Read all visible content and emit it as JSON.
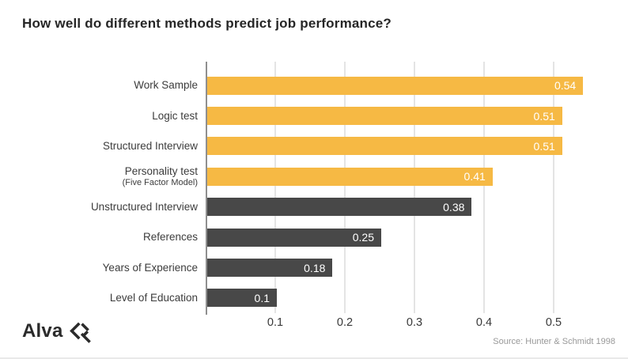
{
  "title": "How well do different methods predict job performance?",
  "source": "Source: Hunter & Schmidt 1998",
  "logo": {
    "text": "Alva",
    "icon": "alva-diamond-icon"
  },
  "colors": {
    "highlight_bar": "#F6B944",
    "default_bar": "#484848",
    "title_text": "#262626",
    "label_text": "#3C3C3C",
    "value_text": "#FFFFFF",
    "gridline": "#E4E4E4",
    "axis_line": "#8F8F8F",
    "source_text": "#989898",
    "background": "#FFFFFF"
  },
  "chart_data": {
    "type": "bar",
    "orientation": "horizontal",
    "title": "How well do different methods predict job performance?",
    "xlabel": "",
    "ylabel": "",
    "xlim": [
      0,
      0.57
    ],
    "grid": "vertical",
    "legend": "none",
    "rows": [
      {
        "label": "Work Sample",
        "sublabel": "",
        "value": 0.54,
        "value_label": "0.54",
        "color": "#F6B944"
      },
      {
        "label": "Logic test",
        "sublabel": "",
        "value": 0.51,
        "value_label": "0.51",
        "color": "#F6B944"
      },
      {
        "label": "Structured Interview",
        "sublabel": "",
        "value": 0.51,
        "value_label": "0.51",
        "color": "#F6B944"
      },
      {
        "label": "Personality test",
        "sublabel": "(Five Factor Model)",
        "value": 0.41,
        "value_label": "0.41",
        "color": "#F6B944"
      },
      {
        "label": "Unstructured Interview",
        "sublabel": "",
        "value": 0.38,
        "value_label": "0.38",
        "color": "#484848"
      },
      {
        "label": "References",
        "sublabel": "",
        "value": 0.25,
        "value_label": "0.25",
        "color": "#484848"
      },
      {
        "label": "Years of Experience",
        "sublabel": "",
        "value": 0.18,
        "value_label": "0.18",
        "color": "#484848"
      },
      {
        "label": "Level of Education",
        "sublabel": "",
        "value": 0.1,
        "value_label": "0.1",
        "color": "#484848"
      }
    ],
    "x_ticks": [
      {
        "label": "0.1",
        "value": 0.1
      },
      {
        "label": "0.2",
        "value": 0.2
      },
      {
        "label": "0.3",
        "value": 0.3
      },
      {
        "label": "0.4",
        "value": 0.4
      },
      {
        "label": "0.5",
        "value": 0.5
      }
    ]
  }
}
